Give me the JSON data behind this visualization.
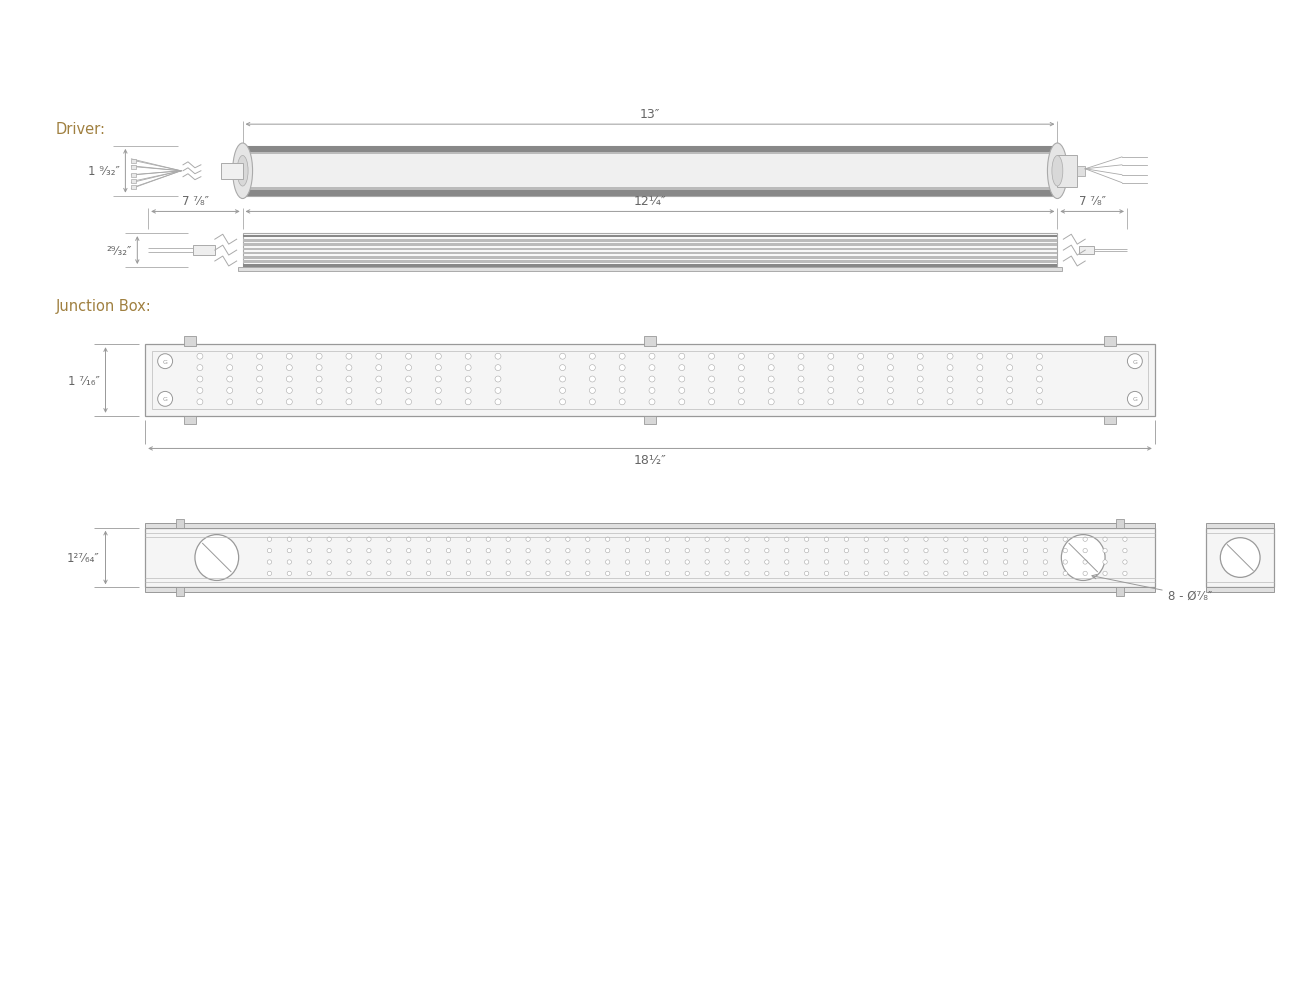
{
  "bg_color": "#ffffff",
  "line_color": "#aaaaaa",
  "dark_strip": "#888888",
  "mid_strip": "#bbbbbb",
  "light_body": "#f8f8f8",
  "label_color": "#666666",
  "section_label_color": "#a08040",
  "driver_label": "Driver:",
  "junction_label": "Junction Box:",
  "dim_13": "13″",
  "dim_7_7_8": "7 ⁷⁄₈″",
  "dim_12_1_4": "12¼″",
  "dim_1_9_32": "1 ⁹⁄₃₂″",
  "dim_29_32": "²⁹⁄₃₂″",
  "dim_18_1_2": "18½″",
  "dim_1_7_16": "1 ⁷⁄₁₆″",
  "dim_1_27_64": "1²⁷⁄₆₄″",
  "dim_hole": "8 - Ø⁷⁄₈″"
}
